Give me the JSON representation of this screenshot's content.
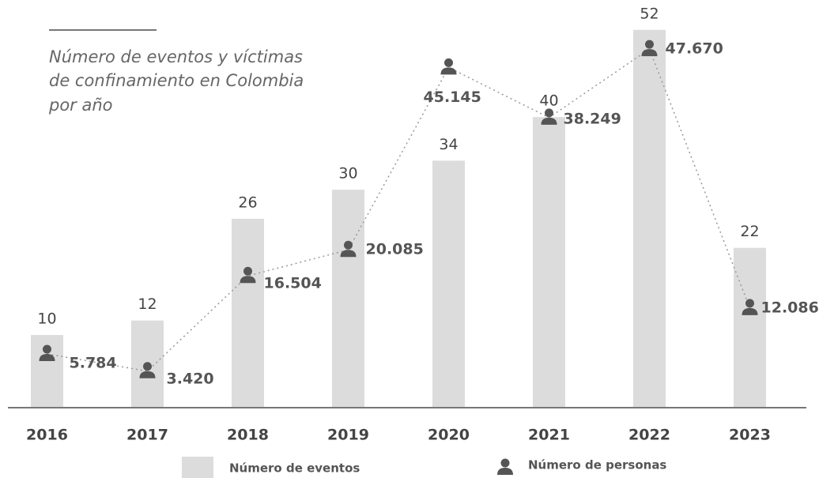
{
  "chart_data": {
    "type": "bar",
    "title": [
      "Número de eventos y víctimas",
      "de confinamiento en Colombia",
      "por año"
    ],
    "categories": [
      "2016",
      "2017",
      "2018",
      "2019",
      "2020",
      "2021",
      "2022",
      "2023"
    ],
    "ylim": [
      0,
      56
    ],
    "y2lim": [
      -1600,
      54300
    ],
    "legend": "bottom",
    "series": [
      {
        "name": "Número de eventos",
        "type": "bar",
        "color": "#dcdcdc",
        "values": [
          10,
          12,
          26,
          30,
          34,
          40,
          52,
          22
        ]
      },
      {
        "name": "Número de personas",
        "type": "line",
        "axis": "y2",
        "color": "#555555",
        "values": [
          5784,
          3420,
          16504,
          20085,
          45145,
          38249,
          47670,
          12086
        ],
        "value_labels": [
          "5.784",
          "3.420",
          "16.504",
          "20.085",
          "45.145",
          "38.249",
          "47.670",
          "12.086"
        ]
      }
    ]
  }
}
